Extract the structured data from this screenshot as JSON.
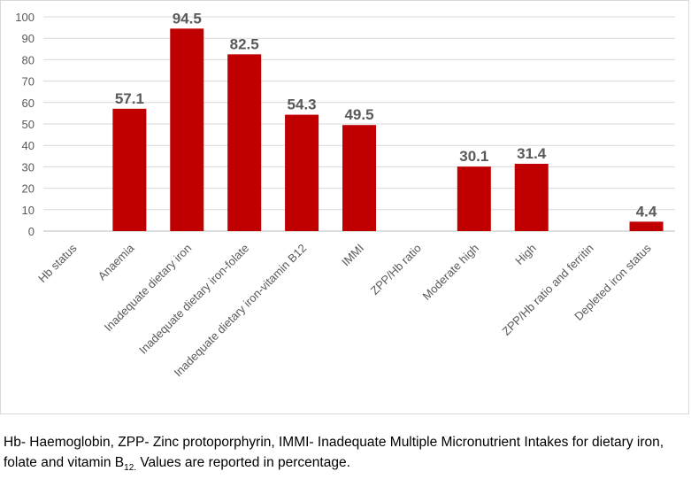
{
  "chart_data": {
    "type": "bar",
    "categories": [
      "Hb status",
      "Anaemia",
      "Inadequate dietary iron",
      "Inadequate dietary iron-folate",
      "Inadequate dietary iron-vitamin B12",
      "IMMI",
      "ZPP/Hb ratio",
      "Moderate high",
      "High",
      "ZPP/Hb ratio and ferritin",
      "Depleted iron status"
    ],
    "values": [
      null,
      57.1,
      94.5,
      82.5,
      54.3,
      49.5,
      null,
      30.1,
      31.4,
      null,
      4.4
    ],
    "data_labels": [
      "",
      "57.1",
      "94.5",
      "82.5",
      "54.3",
      "49.5",
      "",
      "30.1",
      "31.4",
      "",
      "4.4"
    ],
    "y_ticks": [
      "0",
      "10",
      "20",
      "30",
      "40",
      "50",
      "60",
      "70",
      "80",
      "90",
      "100"
    ],
    "ylim": [
      0,
      100
    ],
    "grid": true,
    "bar_color": "#c00000",
    "title": "",
    "xlabel": "",
    "ylabel": ""
  },
  "caption": {
    "part1": "Hb- Haemoglobin, ZPP- Zinc protoporphyrin, IMMI- Inadequate Multiple Micronutrient Intakes for dietary iron, folate and vitamin B",
    "sub": "12.",
    "part2": " Values are reported in percentage."
  }
}
